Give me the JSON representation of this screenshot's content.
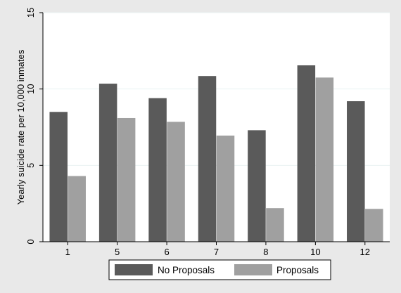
{
  "chart_data": {
    "type": "bar",
    "categories": [
      "1",
      "5",
      "6",
      "7",
      "8",
      "10",
      "12"
    ],
    "series": [
      {
        "name": "No Proposals",
        "values": [
          8.5,
          10.35,
          9.4,
          10.85,
          7.3,
          11.55,
          9.2
        ],
        "color": "#5a5a5a"
      },
      {
        "name": "Proposals",
        "values": [
          4.3,
          8.1,
          7.85,
          6.95,
          2.2,
          10.75,
          2.15
        ],
        "color": "#a0a0a0"
      }
    ],
    "title": "",
    "xlabel": "",
    "ylabel": "Yearly suicide rate per 10,000 inmates",
    "ylim": [
      0,
      15
    ],
    "yticks": [
      "0",
      "5",
      "10",
      "15"
    ],
    "grid": true,
    "legend_position": "bottom",
    "colors": {
      "figure_bg": "#e9e9e9",
      "plot_bg": "#ffffff",
      "grid": "#eaf2f3"
    }
  }
}
